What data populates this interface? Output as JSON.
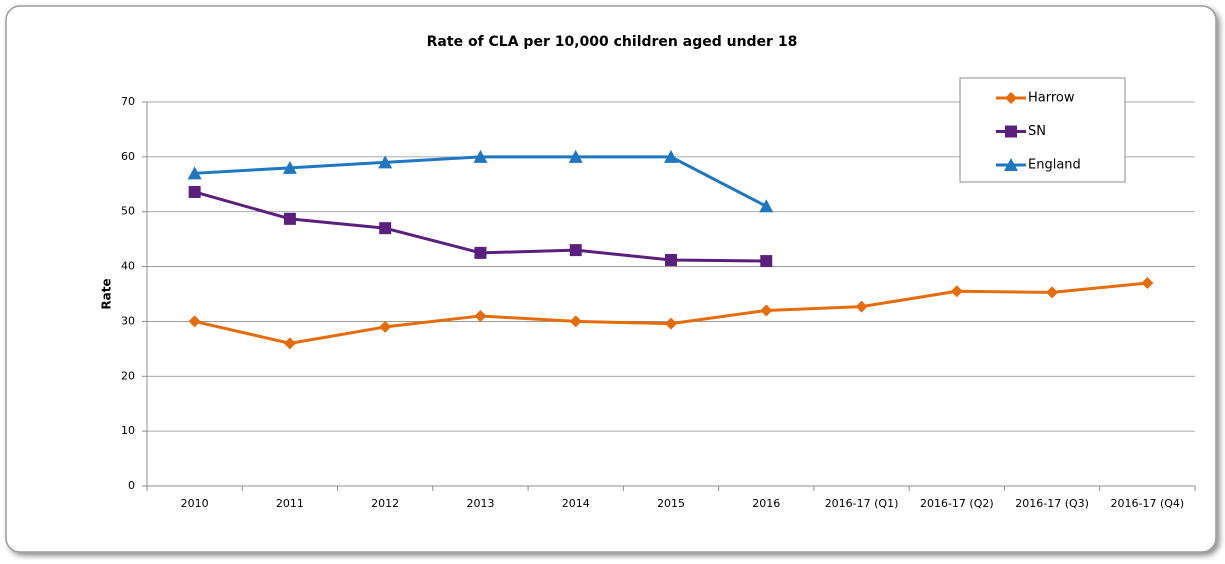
{
  "chart_data": {
    "type": "line",
    "title": "Rate of CLA per 10,000 children aged under 18",
    "y_label": "Rate",
    "categories": [
      "2010",
      "2011",
      "2012",
      "2013",
      "2014",
      "2015",
      "2016",
      "2016-17 (Q1)",
      "2016-17 (Q2)",
      "2016-17 (Q3)",
      "2016-17 (Q4)"
    ],
    "series": [
      {
        "name": "Harrow",
        "color": "#e46c0a",
        "marker": "diamond",
        "values": [
          30,
          26,
          29,
          31,
          30,
          29.6,
          32,
          32.7,
          35.5,
          35.3,
          37
        ]
      },
      {
        "name": "SN",
        "color": "#5b1f7c",
        "marker": "square",
        "values": [
          53.6,
          48.7,
          47,
          42.5,
          43,
          41.2,
          41,
          null,
          null,
          null,
          null
        ]
      },
      {
        "name": "England",
        "color": "#1f77c0",
        "marker": "triangle",
        "values": [
          57,
          58,
          59,
          60,
          60,
          60,
          51,
          null,
          null,
          null,
          null
        ]
      }
    ],
    "ylim": [
      0,
      70
    ],
    "yticks": [
      0,
      10,
      20,
      30,
      40,
      50,
      60,
      70
    ],
    "grid": true,
    "legend": "top-right"
  }
}
